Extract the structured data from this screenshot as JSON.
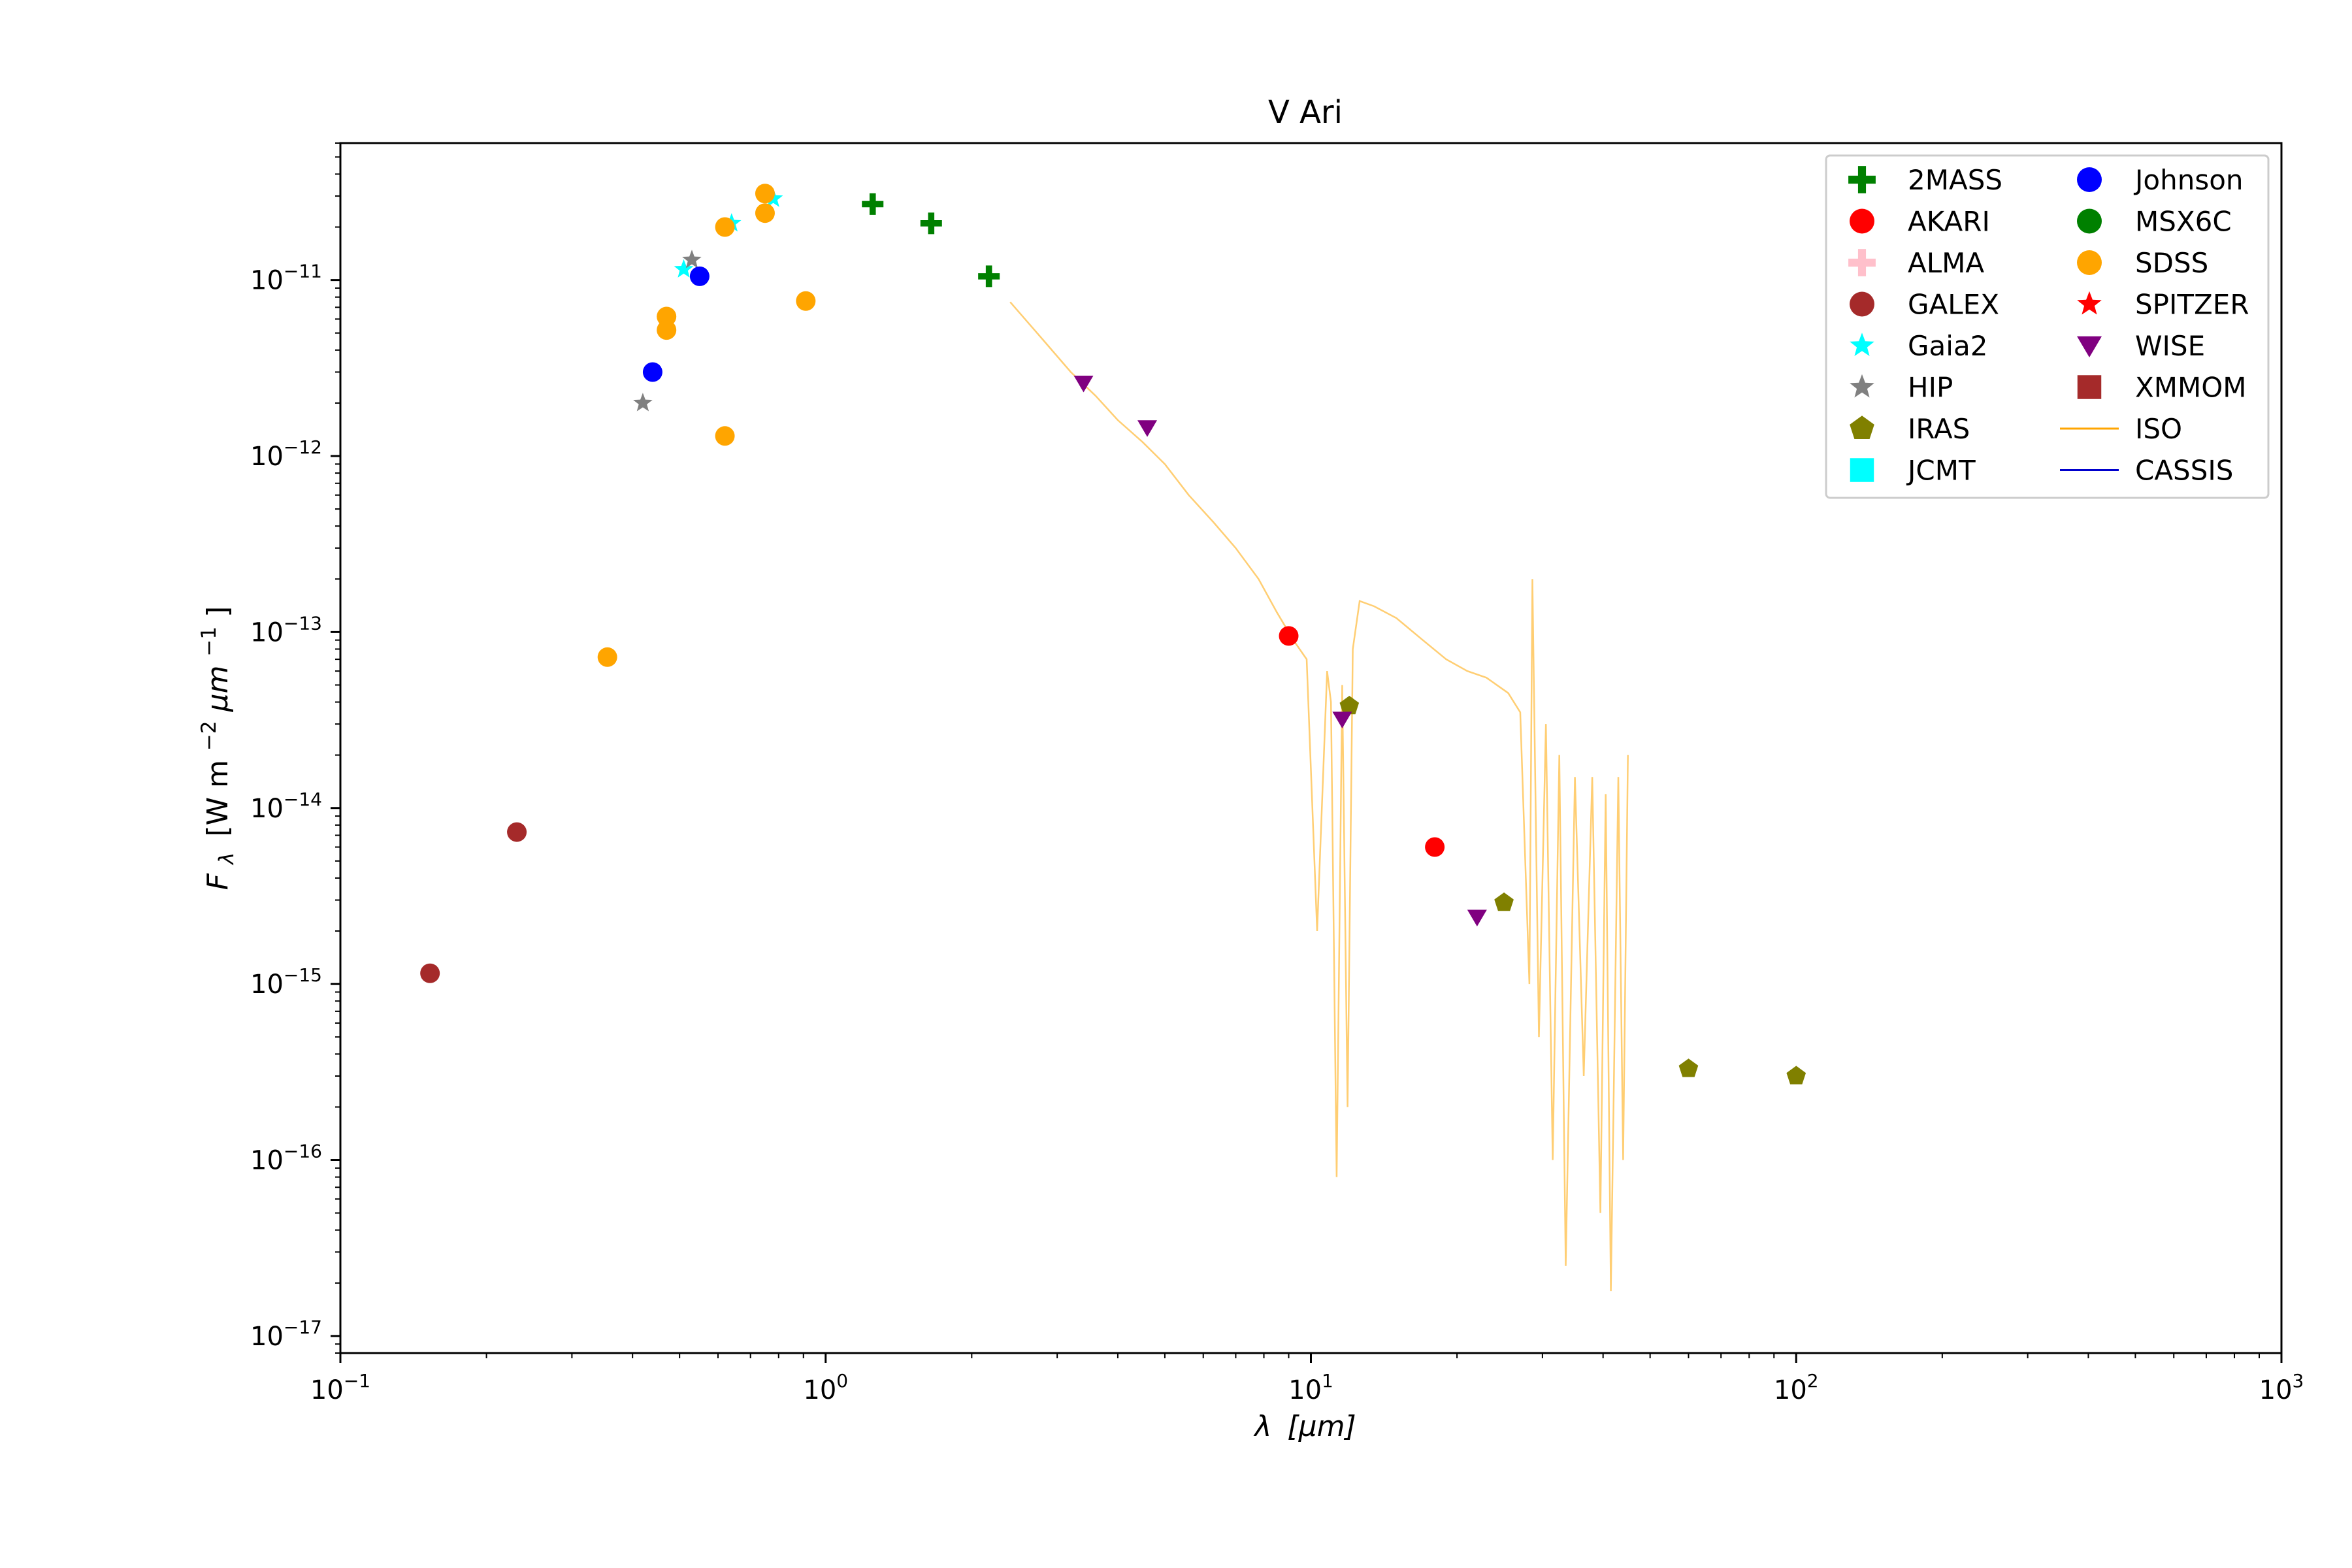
{
  "chart_data": {
    "type": "scatter",
    "title": "V Ari",
    "xlabel_var": "λ",
    "xlabel_unit": "[μm]",
    "ylabel_var": "F",
    "ylabel_sub": "λ",
    "ylabel_unit": "[W m",
    "ylabel_exp1": "−2",
    "ylabel_mid": "μm",
    "ylabel_exp2": "−1",
    "ylabel_end": "]",
    "x_scale": "log",
    "y_scale": "log",
    "xlim": [
      0.1,
      1000
    ],
    "ylim": [
      8e-18,
      6e-11
    ],
    "grid": false,
    "legend_position": "top-right",
    "x_ticks": [
      {
        "value": 0.1,
        "base": "10",
        "exp": "−1"
      },
      {
        "value": 1,
        "base": "10",
        "exp": "0"
      },
      {
        "value": 10,
        "base": "10",
        "exp": "1"
      },
      {
        "value": 100,
        "base": "10",
        "exp": "2"
      },
      {
        "value": 1000,
        "base": "10",
        "exp": "3"
      }
    ],
    "y_ticks": [
      {
        "value": 1e-17,
        "base": "10",
        "exp": "−17"
      },
      {
        "value": 1e-16,
        "base": "10",
        "exp": "−16"
      },
      {
        "value": 1e-15,
        "base": "10",
        "exp": "−15"
      },
      {
        "value": 1e-14,
        "base": "10",
        "exp": "−14"
      },
      {
        "value": 1e-13,
        "base": "10",
        "exp": "−13"
      },
      {
        "value": 1e-12,
        "base": "10",
        "exp": "−12"
      },
      {
        "value": 1e-11,
        "base": "10",
        "exp": "−11"
      }
    ],
    "series": [
      {
        "name": "2MASS",
        "marker": "plus",
        "color": "#008000",
        "points": [
          [
            1.25,
            2.7e-11
          ],
          [
            1.65,
            2.1e-11
          ],
          [
            2.17,
            1.05e-11
          ]
        ]
      },
      {
        "name": "AKARI",
        "marker": "circle",
        "color": "#ff0000",
        "points": [
          [
            9.0,
            9.5e-14
          ],
          [
            18.0,
            6e-15
          ]
        ]
      },
      {
        "name": "ALMA",
        "marker": "plus",
        "color": "#ffc0cb",
        "points": []
      },
      {
        "name": "GALEX",
        "marker": "circle",
        "color": "#a52a2a",
        "points": [
          [
            0.153,
            1.15e-15
          ],
          [
            0.231,
            7.3e-15
          ]
        ]
      },
      {
        "name": "Gaia2",
        "marker": "star",
        "color": "#00ffff",
        "points": [
          [
            0.51,
            1.15e-11
          ],
          [
            0.64,
            2.1e-11
          ],
          [
            0.78,
            2.9e-11
          ]
        ]
      },
      {
        "name": "HIP",
        "marker": "star",
        "color": "#808080",
        "points": [
          [
            0.42,
            2e-12
          ],
          [
            0.53,
            1.3e-11
          ]
        ]
      },
      {
        "name": "IRAS",
        "marker": "pentagon",
        "color": "#808000",
        "points": [
          [
            12.0,
            3.8e-14
          ],
          [
            25.0,
            2.9e-15
          ],
          [
            60.0,
            3.3e-16
          ],
          [
            100.0,
            3e-16
          ]
        ]
      },
      {
        "name": "JCMT",
        "marker": "square",
        "color": "#00ffff",
        "points": []
      },
      {
        "name": "Johnson",
        "marker": "circle",
        "color": "#0000ff",
        "points": [
          [
            0.44,
            3e-12
          ],
          [
            0.55,
            1.05e-11
          ]
        ]
      },
      {
        "name": "MSX6C",
        "marker": "circle",
        "color": "#008000",
        "points": []
      },
      {
        "name": "SDSS",
        "marker": "circle",
        "color": "#ffa500",
        "points": [
          [
            0.355,
            7.2e-14
          ],
          [
            0.47,
            6.2e-12
          ],
          [
            0.47,
            5.2e-12
          ],
          [
            0.62,
            1.3e-12
          ],
          [
            0.62,
            2e-11
          ],
          [
            0.75,
            3.1e-11
          ],
          [
            0.75,
            2.4e-11
          ],
          [
            0.91,
            7.6e-12
          ]
        ]
      },
      {
        "name": "SPITZER",
        "marker": "star",
        "color": "#ff0000",
        "points": []
      },
      {
        "name": "WISE",
        "marker": "triangle-down",
        "color": "#800080",
        "points": [
          [
            3.4,
            2.6e-12
          ],
          [
            4.6,
            1.45e-12
          ],
          [
            11.6,
            3.2e-14
          ],
          [
            22.0,
            2.4e-15
          ]
        ]
      },
      {
        "name": "XMMOM",
        "marker": "square",
        "color": "#a52a2a",
        "points": []
      },
      {
        "name": "ISO",
        "marker": "line",
        "color": "#ffa500",
        "points": [
          [
            2.4,
            7.5e-12
          ],
          [
            2.8,
            4.6e-12
          ],
          [
            3.2,
            3e-12
          ],
          [
            3.6,
            2.2e-12
          ],
          [
            4.0,
            1.6e-12
          ],
          [
            4.5,
            1.2e-12
          ],
          [
            5.0,
            9e-13
          ],
          [
            5.6,
            6e-13
          ],
          [
            6.3,
            4.2e-13
          ],
          [
            7.0,
            3e-13
          ],
          [
            7.8,
            2e-13
          ],
          [
            8.5,
            1.3e-13
          ],
          [
            9.2,
            9e-14
          ],
          [
            9.8,
            7e-14
          ],
          [
            10.3,
            2e-15
          ],
          [
            10.8,
            6e-14
          ],
          [
            11.0,
            4e-14
          ],
          [
            11.3,
            8e-17
          ],
          [
            11.6,
            5e-14
          ],
          [
            11.9,
            2e-16
          ],
          [
            12.2,
            8e-14
          ],
          [
            12.6,
            1.5e-13
          ],
          [
            13.5,
            1.4e-13
          ],
          [
            15.0,
            1.2e-13
          ],
          [
            17.0,
            9e-14
          ],
          [
            19.0,
            7e-14
          ],
          [
            21.0,
            6e-14
          ],
          [
            23.0,
            5.5e-14
          ],
          [
            25.5,
            4.5e-14
          ],
          [
            27.0,
            3.5e-14
          ],
          [
            28.2,
            1e-15
          ],
          [
            28.6,
            2e-13
          ],
          [
            29.5,
            5e-16
          ],
          [
            30.5,
            3e-14
          ],
          [
            31.5,
            1e-16
          ],
          [
            32.5,
            2e-14
          ],
          [
            33.5,
            2.5e-17
          ],
          [
            35.0,
            1.5e-14
          ],
          [
            36.5,
            3e-16
          ],
          [
            38.0,
            1.5e-14
          ],
          [
            39.5,
            5e-17
          ],
          [
            40.5,
            1.2e-14
          ],
          [
            41.5,
            1.8e-17
          ],
          [
            43.0,
            1.5e-14
          ],
          [
            44.0,
            1e-16
          ],
          [
            45.0,
            2e-14
          ]
        ]
      },
      {
        "name": "CASSIS",
        "marker": "line",
        "color": "#0000cd",
        "points": []
      }
    ]
  }
}
